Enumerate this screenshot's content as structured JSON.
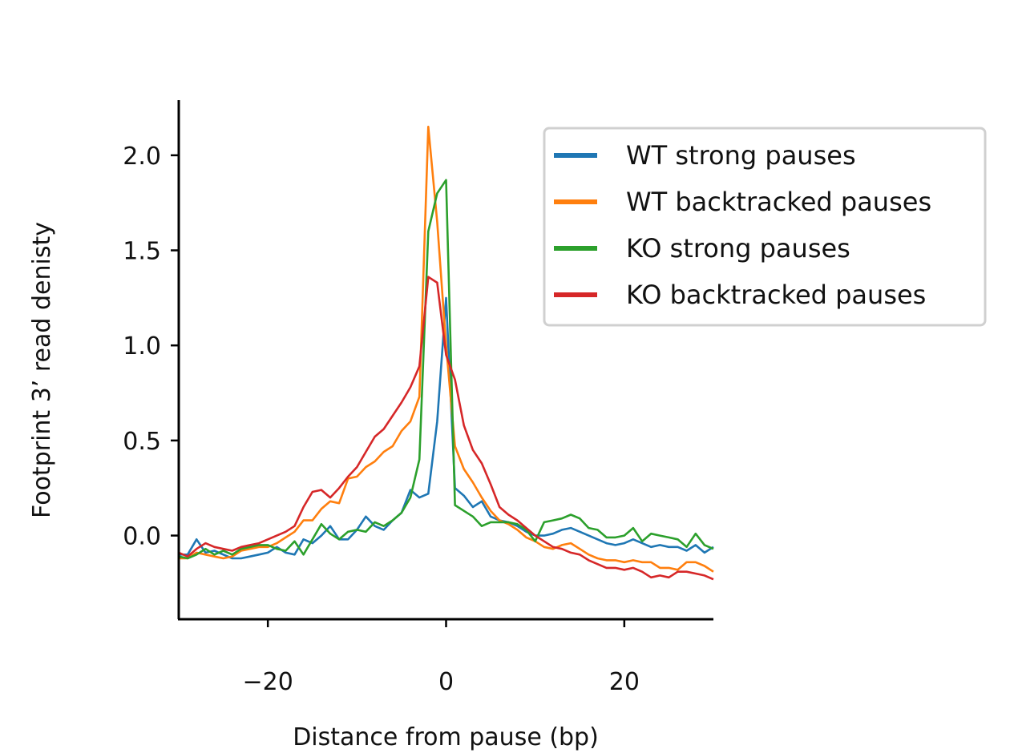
{
  "chart_data": {
    "type": "line",
    "title": "",
    "xlabel": "Distance from pause (bp)",
    "ylabel": "Footprint 3’ read denisty",
    "xlim": [
      -30,
      30
    ],
    "ylim": [
      -0.44,
      2.29
    ],
    "xticks": [
      -20,
      0,
      20
    ],
    "xtick_labels": [
      "−20",
      "0",
      "20"
    ],
    "yticks": [
      0.0,
      0.5,
      1.0,
      1.5,
      2.0
    ],
    "ytick_labels": [
      "0.0",
      "0.5",
      "1.0",
      "1.5",
      "2.0"
    ],
    "grid": false,
    "legend_position": "top-right",
    "x": [
      -30,
      -29,
      -28,
      -27,
      -26,
      -25,
      -24,
      -23,
      -22,
      -21,
      -20,
      -19,
      -18,
      -17,
      -16,
      -15,
      -14,
      -13,
      -12,
      -11,
      -10,
      -9,
      -8,
      -7,
      -6,
      -5,
      -4,
      -3,
      -2,
      -1,
      0,
      1,
      2,
      3,
      4,
      5,
      6,
      7,
      8,
      9,
      10,
      11,
      12,
      13,
      14,
      15,
      16,
      17,
      18,
      19,
      20,
      21,
      22,
      23,
      24,
      25,
      26,
      27,
      28,
      29,
      30
    ],
    "series": [
      {
        "name": "WT strong pauses",
        "color": "#1f77b4",
        "values": [
          -0.1,
          -0.1,
          -0.02,
          -0.09,
          -0.08,
          -0.1,
          -0.12,
          -0.12,
          -0.11,
          -0.1,
          -0.09,
          -0.06,
          -0.09,
          -0.1,
          -0.02,
          -0.04,
          0.0,
          0.05,
          -0.02,
          -0.02,
          0.03,
          0.1,
          0.05,
          0.03,
          0.08,
          0.12,
          0.24,
          0.2,
          0.22,
          0.6,
          1.25,
          0.25,
          0.21,
          0.15,
          0.18,
          0.1,
          0.08,
          0.07,
          0.05,
          0.02,
          0.0,
          0.0,
          0.01,
          0.03,
          0.04,
          0.02,
          0.0,
          -0.02,
          -0.04,
          -0.05,
          -0.04,
          -0.02,
          -0.04,
          -0.06,
          -0.05,
          -0.06,
          -0.06,
          -0.08,
          -0.05,
          -0.09,
          -0.06
        ]
      },
      {
        "name": "WT backtracked pauses",
        "color": "#ff7f0e",
        "values": [
          -0.12,
          -0.12,
          -0.09,
          -0.1,
          -0.11,
          -0.12,
          -0.11,
          -0.08,
          -0.07,
          -0.06,
          -0.06,
          -0.04,
          -0.01,
          0.02,
          0.08,
          0.08,
          0.14,
          0.18,
          0.17,
          0.3,
          0.31,
          0.36,
          0.39,
          0.44,
          0.47,
          0.55,
          0.6,
          0.73,
          2.15,
          1.65,
          1.0,
          0.47,
          0.35,
          0.28,
          0.2,
          0.13,
          0.08,
          0.06,
          0.03,
          -0.01,
          -0.03,
          -0.06,
          -0.07,
          -0.05,
          -0.04,
          -0.07,
          -0.1,
          -0.12,
          -0.13,
          -0.13,
          -0.14,
          -0.13,
          -0.14,
          -0.14,
          -0.17,
          -0.17,
          -0.18,
          -0.14,
          -0.14,
          -0.16,
          -0.19
        ]
      },
      {
        "name": "KO strong pauses",
        "color": "#2ca02c",
        "values": [
          -0.11,
          -0.12,
          -0.1,
          -0.07,
          -0.1,
          -0.08,
          -0.1,
          -0.07,
          -0.06,
          -0.05,
          -0.05,
          -0.07,
          -0.08,
          -0.03,
          -0.1,
          -0.02,
          0.06,
          0.01,
          -0.02,
          0.02,
          0.03,
          0.02,
          0.07,
          0.05,
          0.08,
          0.12,
          0.2,
          0.4,
          1.6,
          1.8,
          1.87,
          0.16,
          0.13,
          0.1,
          0.05,
          0.07,
          0.07,
          0.07,
          0.06,
          0.03,
          -0.03,
          0.07,
          0.08,
          0.09,
          0.11,
          0.09,
          0.04,
          0.03,
          -0.01,
          -0.01,
          0.0,
          0.04,
          -0.03,
          0.01,
          0.0,
          -0.01,
          -0.02,
          -0.06,
          0.01,
          -0.05,
          -0.07
        ]
      },
      {
        "name": "KO backtracked pauses",
        "color": "#d62728",
        "values": [
          -0.09,
          -0.11,
          -0.07,
          -0.04,
          -0.06,
          -0.07,
          -0.08,
          -0.06,
          -0.05,
          -0.04,
          -0.02,
          0.0,
          0.02,
          0.05,
          0.15,
          0.23,
          0.24,
          0.2,
          0.25,
          0.31,
          0.36,
          0.44,
          0.52,
          0.56,
          0.63,
          0.7,
          0.78,
          0.89,
          1.36,
          1.33,
          0.95,
          0.82,
          0.58,
          0.45,
          0.38,
          0.27,
          0.15,
          0.11,
          0.08,
          0.04,
          0.0,
          -0.03,
          -0.06,
          -0.07,
          -0.09,
          -0.1,
          -0.13,
          -0.15,
          -0.17,
          -0.17,
          -0.18,
          -0.17,
          -0.19,
          -0.22,
          -0.21,
          -0.22,
          -0.19,
          -0.19,
          -0.2,
          -0.21,
          -0.23
        ]
      }
    ]
  }
}
